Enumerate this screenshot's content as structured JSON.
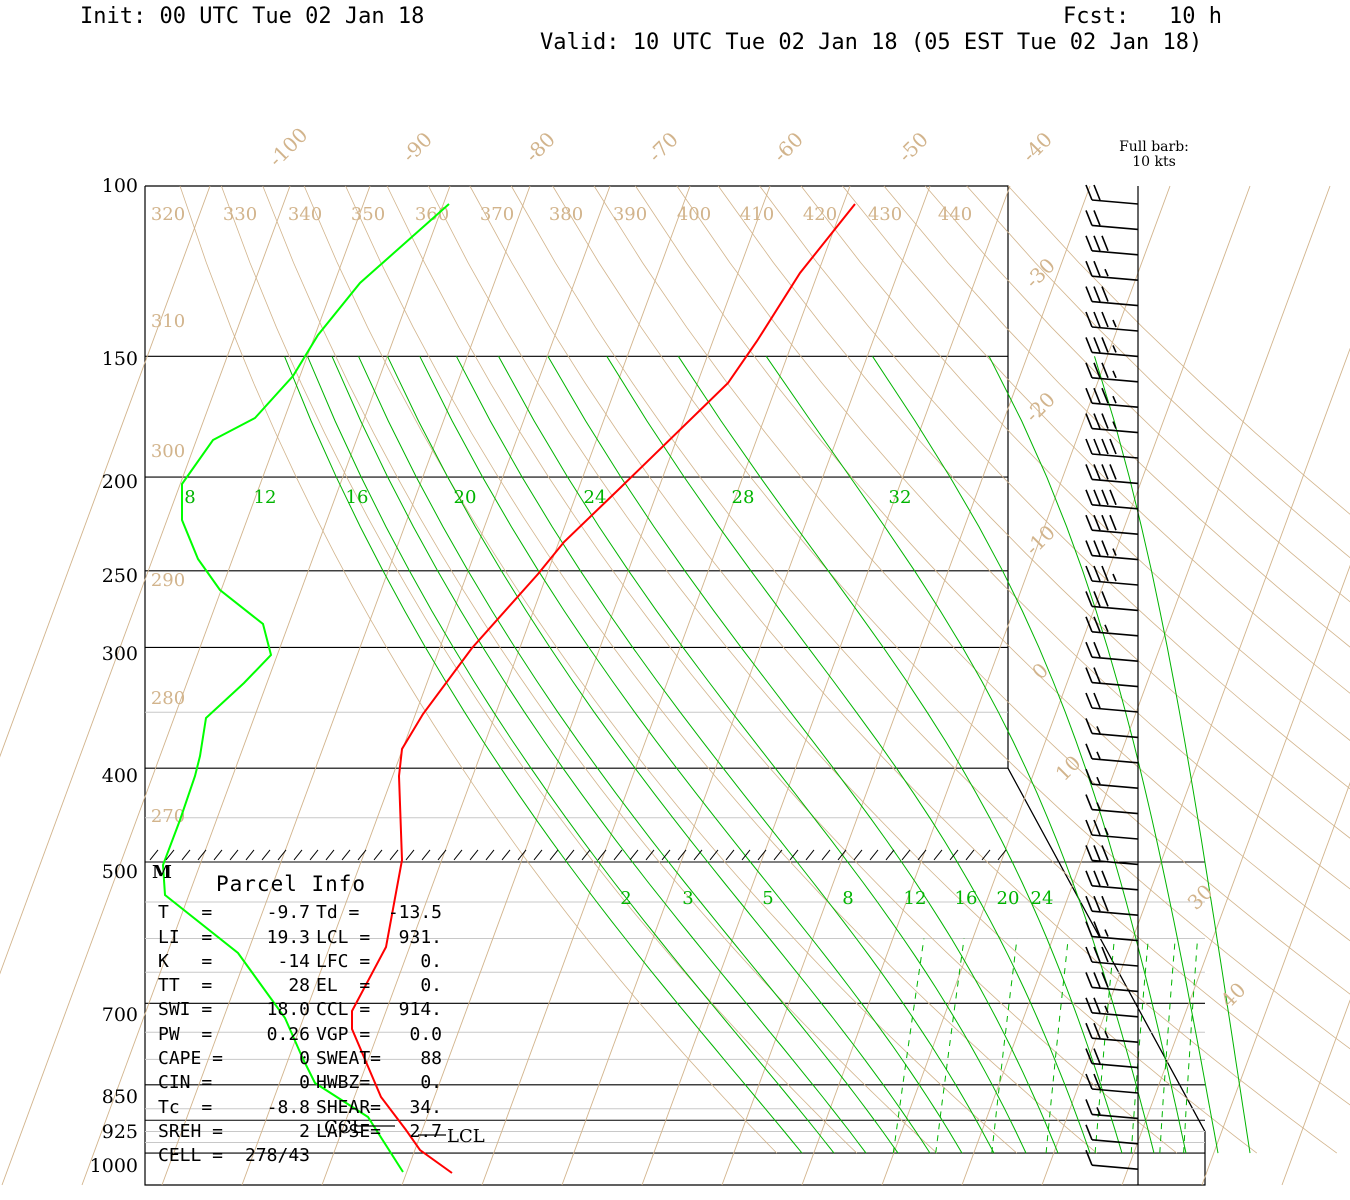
{
  "header": {
    "init": "Init: 00 UTC Tue 02 Jan 18",
    "fcst": "Fcst:   10 h",
    "valid": "Valid: 10 UTC Tue 02 Jan 18 (05 EST Tue 02 Jan 18)"
  },
  "barb_note": {
    "line1": "Full barb:",
    "line2": "10 kts"
  },
  "parcel": {
    "title": "Parcel Info",
    "rows": [
      {
        "l1": "T   =",
        "v1": "-9.7",
        "l2": "Td =",
        "v2": "-13.5"
      },
      {
        "l1": "LI  =",
        "v1": "19.3",
        "l2": "LCL =",
        "v2": "931."
      },
      {
        "l1": "K   =",
        "v1": "-14",
        "l2": "LFC =",
        "v2": "0."
      },
      {
        "l1": "TT  =",
        "v1": "28",
        "l2": "EL  =",
        "v2": "0."
      },
      {
        "l1": "SWI =",
        "v1": "18.0",
        "l2": "CCL =",
        "v2": "914."
      },
      {
        "l1": "PW  =",
        "v1": "0.26",
        "l2": "VGP =",
        "v2": "0.0"
      },
      {
        "l1": "CAPE =",
        "v1": "0",
        "l2": "SWEAT=",
        "v2": "88"
      },
      {
        "l1": "CIN =",
        "v1": "0",
        "l2": "HWBZ=",
        "v2": "0."
      },
      {
        "l1": "Tc  =",
        "v1": "-8.8",
        "l2": "SHEAR=",
        "v2": "34."
      },
      {
        "l1": "SREH =",
        "v1": "2",
        "l2": "LAPSE=",
        "v2": "2.7"
      },
      {
        "l1": "CELL =",
        "v1": "278/43",
        "l2": "",
        "v2": ""
      }
    ]
  },
  "markers": {
    "ccl": "CCL",
    "lcl": "LCL",
    "m": "M"
  },
  "chart_data": {
    "type": "line",
    "title": "",
    "pressure_labels": [
      "100",
      "150",
      "200",
      "250",
      "300",
      "400",
      "500",
      "700",
      "850",
      "925",
      "1000"
    ],
    "isotherm_labels": [
      "-100",
      "-90",
      "-80",
      "-70",
      "-60",
      "-50",
      "-40",
      "-30",
      "-20",
      "-10",
      "0",
      "10",
      "30",
      "40"
    ],
    "theta_labels": [
      "320",
      "330",
      "340",
      "350",
      "360",
      "370",
      "380",
      "390",
      "400",
      "410",
      "420",
      "430",
      "440",
      "310",
      "300",
      "290",
      "280",
      "270"
    ],
    "mixing_ratio_upper": [
      "8",
      "12",
      "16",
      "20",
      "24",
      "28",
      "32"
    ],
    "mixing_ratio_lower": [
      "2",
      "3",
      "5",
      "8",
      "12",
      "16",
      "20",
      "24"
    ],
    "series": [
      {
        "color": "#ff0000",
        "points": [
          [
            100,
            -61
          ],
          [
            120,
            -58
          ],
          [
            150,
            -57
          ],
          [
            165,
            -55
          ],
          [
            200,
            -52
          ],
          [
            230,
            -51
          ],
          [
            250,
            -50
          ],
          [
            300,
            -47
          ],
          [
            350,
            -42
          ],
          [
            380,
            -37
          ],
          [
            400,
            -35
          ],
          [
            500,
            -27
          ],
          [
            600,
            -20
          ],
          [
            700,
            -17
          ],
          [
            760,
            -16
          ],
          [
            850,
            -14
          ],
          [
            925,
            -11
          ],
          [
            960,
            -10.5
          ],
          [
            1000,
            -9.7
          ]
        ]
      },
      {
        "color": "#00ff00",
        "points": [
          [
            100,
            -80
          ],
          [
            130,
            -78
          ],
          [
            150,
            -78
          ],
          [
            170,
            -77
          ],
          [
            190,
            -77
          ],
          [
            200,
            -78
          ],
          [
            220,
            -75
          ],
          [
            240,
            -70
          ],
          [
            260,
            -63
          ],
          [
            285,
            -55
          ],
          [
            300,
            -52
          ],
          [
            320,
            -56
          ],
          [
            350,
            -55
          ],
          [
            400,
            -54
          ],
          [
            450,
            -50
          ],
          [
            500,
            -46
          ],
          [
            520,
            -45
          ],
          [
            570,
            -37
          ],
          [
            630,
            -27
          ],
          [
            700,
            -23
          ],
          [
            780,
            -21
          ],
          [
            850,
            -20
          ],
          [
            900,
            -17
          ],
          [
            960,
            -15.5
          ],
          [
            1000,
            -13.5
          ]
        ]
      }
    ],
    "wind_barbs": [
      {
        "p": 100,
        "kt": 20
      },
      {
        "p": 110,
        "kt": 20
      },
      {
        "p": 120,
        "kt": 30
      },
      {
        "p": 130,
        "kt": 25
      },
      {
        "p": 140,
        "kt": 30
      },
      {
        "p": 150,
        "kt": 35
      },
      {
        "p": 160,
        "kt": 35
      },
      {
        "p": 170,
        "kt": 35
      },
      {
        "p": 180,
        "kt": 35
      },
      {
        "p": 190,
        "kt": 35
      },
      {
        "p": 200,
        "kt": 40
      },
      {
        "p": 215,
        "kt": 40
      },
      {
        "p": 230,
        "kt": 40
      },
      {
        "p": 245,
        "kt": 40
      },
      {
        "p": 260,
        "kt": 35
      },
      {
        "p": 275,
        "kt": 35
      },
      {
        "p": 290,
        "kt": 30
      },
      {
        "p": 305,
        "kt": 25
      },
      {
        "p": 325,
        "kt": 20
      },
      {
        "p": 345,
        "kt": 20
      },
      {
        "p": 365,
        "kt": 20
      },
      {
        "p": 390,
        "kt": 15
      },
      {
        "p": 415,
        "kt": 15
      },
      {
        "p": 445,
        "kt": 15
      },
      {
        "p": 475,
        "kt": 15
      },
      {
        "p": 505,
        "kt": 25
      },
      {
        "p": 540,
        "kt": 30
      },
      {
        "p": 580,
        "kt": 30
      },
      {
        "p": 620,
        "kt": 30
      },
      {
        "p": 660,
        "kt": 25
      },
      {
        "p": 700,
        "kt": 30
      },
      {
        "p": 750,
        "kt": 30
      },
      {
        "p": 800,
        "kt": 25
      },
      {
        "p": 850,
        "kt": 25
      },
      {
        "p": 880,
        "kt": 20
      },
      {
        "p": 910,
        "kt": 20
      },
      {
        "p": 940,
        "kt": 15
      },
      {
        "p": 970,
        "kt": 10
      },
      {
        "p": 1000,
        "kt": 10
      }
    ],
    "legend_position": "none"
  }
}
